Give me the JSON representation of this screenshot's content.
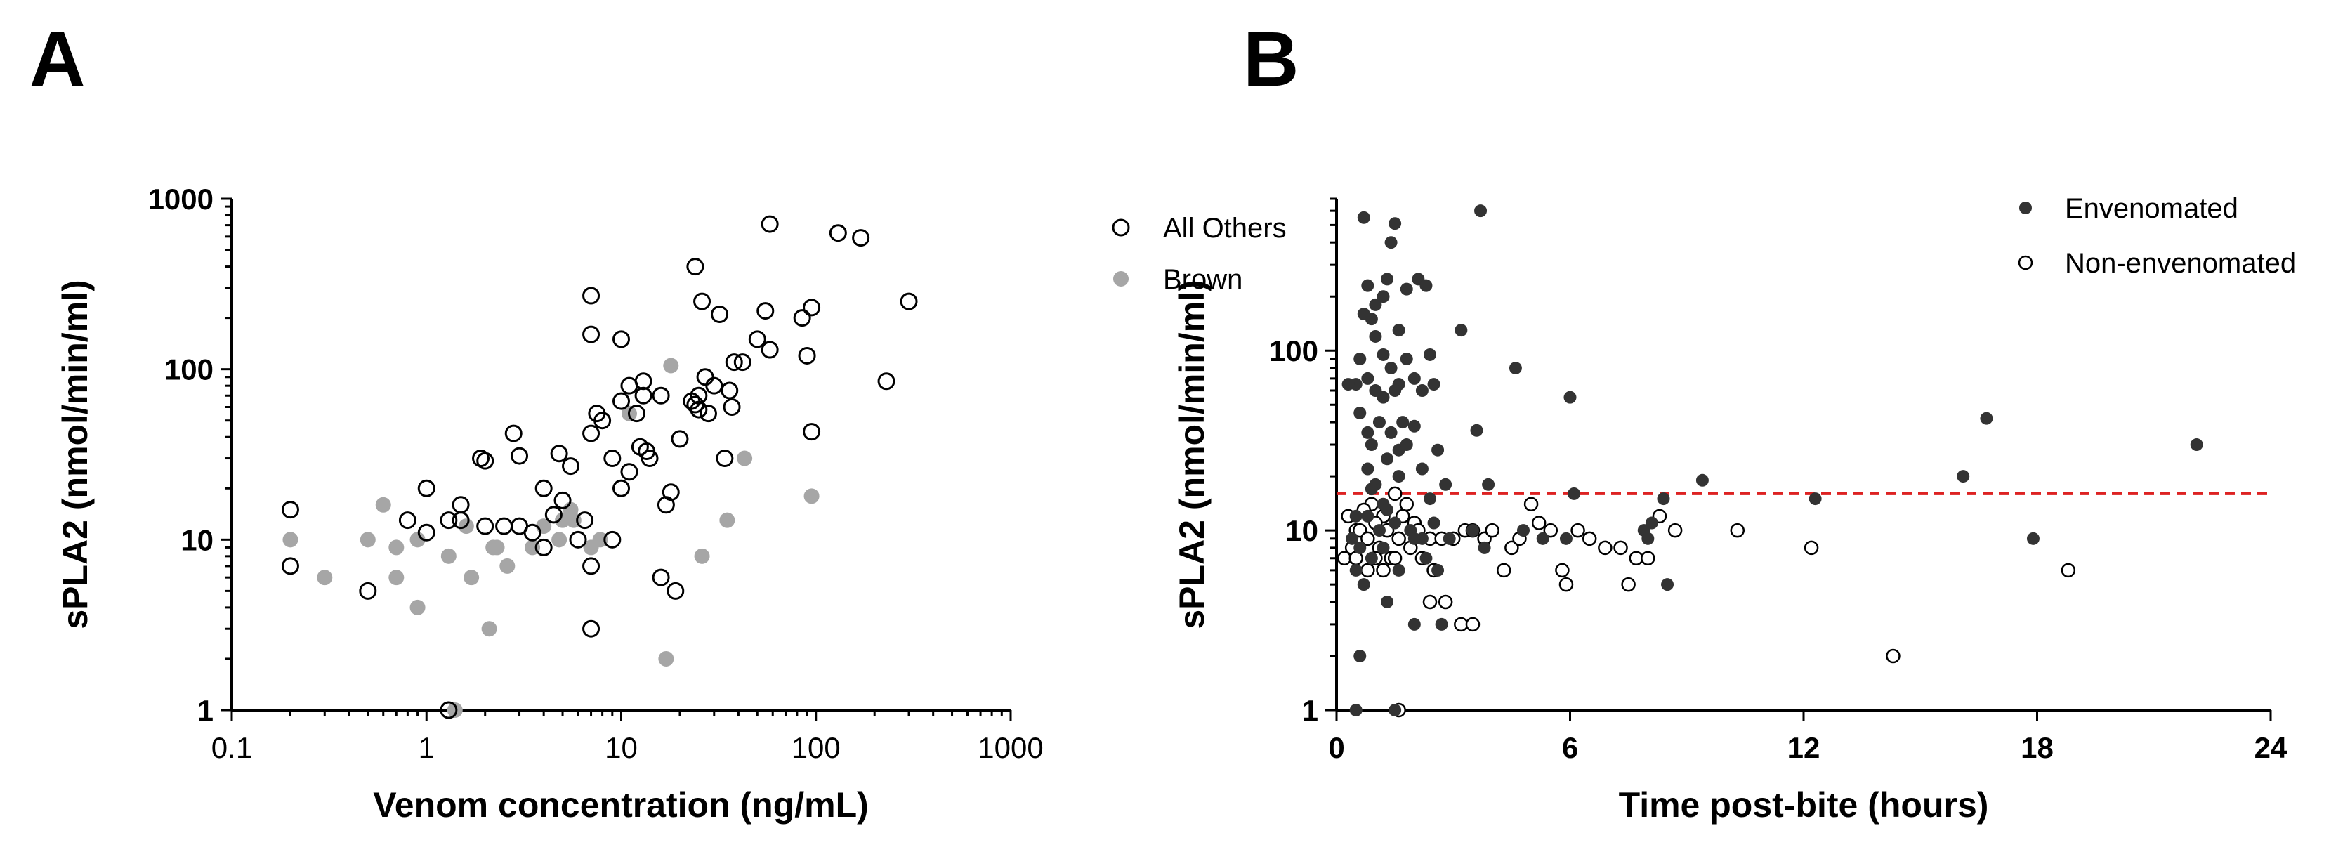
{
  "colors": {
    "black": "#000000",
    "dark_fill": "#333333",
    "gray_fill": "#a6a6a6",
    "threshold": "#dd2222"
  },
  "chart_data": [
    {
      "panel_label": "A",
      "type": "scatter",
      "xscale": "log",
      "yscale": "log",
      "xlabel": "Venom concentration (ng/mL)",
      "ylabel": "sPLA2 (nmol/min/ml)",
      "xlim": [
        0.1,
        1000
      ],
      "ylim": [
        1,
        1000
      ],
      "xticks": [
        "0.1",
        "1",
        "10",
        "100",
        "1000"
      ],
      "yticks": [
        "1",
        "10",
        "100",
        "1000"
      ],
      "legend_position": "right",
      "series": [
        {
          "name": "All Others",
          "marker": "open-circle",
          "points": [
            [
              0.2,
              15
            ],
            [
              0.2,
              7
            ],
            [
              0.5,
              5
            ],
            [
              0.8,
              13
            ],
            [
              1,
              20
            ],
            [
              1,
              11
            ],
            [
              1.3,
              13
            ],
            [
              1.5,
              16
            ],
            [
              1.5,
              13
            ],
            [
              1.9,
              30
            ],
            [
              2,
              29
            ],
            [
              2,
              12
            ],
            [
              2.5,
              12
            ],
            [
              2.8,
              42
            ],
            [
              3,
              12
            ],
            [
              3,
              31
            ],
            [
              3.5,
              11
            ],
            [
              4,
              20
            ],
            [
              4,
              9
            ],
            [
              4.5,
              14
            ],
            [
              4.8,
              32
            ],
            [
              5,
              17
            ],
            [
              5.5,
              27
            ],
            [
              6,
              10
            ],
            [
              6.5,
              13
            ],
            [
              7,
              270
            ],
            [
              7,
              160
            ],
            [
              7,
              42
            ],
            [
              7,
              7
            ],
            [
              7,
              3
            ],
            [
              7.5,
              55
            ],
            [
              8,
              50
            ],
            [
              9,
              30
            ],
            [
              9,
              10
            ],
            [
              10,
              150
            ],
            [
              10,
              65
            ],
            [
              10,
              20
            ],
            [
              11,
              80
            ],
            [
              11,
              25
            ],
            [
              12,
              55
            ],
            [
              12.5,
              35
            ],
            [
              13,
              85
            ],
            [
              13,
              70
            ],
            [
              13.5,
              33
            ],
            [
              14,
              30
            ],
            [
              16,
              70
            ],
            [
              16,
              6
            ],
            [
              17,
              16
            ],
            [
              18,
              19
            ],
            [
              19,
              5
            ],
            [
              20,
              39
            ],
            [
              23,
              65
            ],
            [
              24,
              62
            ],
            [
              24,
              400
            ],
            [
              25,
              70
            ],
            [
              25,
              58
            ],
            [
              26,
              250
            ],
            [
              27,
              90
            ],
            [
              28,
              55
            ],
            [
              30,
              80
            ],
            [
              32,
              210
            ],
            [
              34,
              30
            ],
            [
              36,
              75
            ],
            [
              37,
              60
            ],
            [
              38,
              110
            ],
            [
              42,
              110
            ],
            [
              50,
              150
            ],
            [
              55,
              220
            ],
            [
              58,
              130
            ],
            [
              58,
              710
            ],
            [
              85,
              200
            ],
            [
              90,
              120
            ],
            [
              95,
              230
            ],
            [
              95,
              43
            ],
            [
              130,
              630
            ],
            [
              170,
              590
            ],
            [
              230,
              85
            ],
            [
              300,
              250
            ],
            [
              1.3,
              1
            ]
          ]
        },
        {
          "name": "Brown",
          "marker": "filled-circle-gray",
          "points": [
            [
              0.2,
              10
            ],
            [
              0.3,
              6
            ],
            [
              0.5,
              10
            ],
            [
              0.6,
              16
            ],
            [
              0.7,
              9
            ],
            [
              0.7,
              6
            ],
            [
              0.9,
              10
            ],
            [
              0.9,
              4
            ],
            [
              1.3,
              8
            ],
            [
              1.4,
              1
            ],
            [
              1.6,
              12
            ],
            [
              1.7,
              6
            ],
            [
              2.1,
              3
            ],
            [
              2.2,
              9
            ],
            [
              2.3,
              9
            ],
            [
              2.6,
              7
            ],
            [
              3.5,
              9
            ],
            [
              4,
              12
            ],
            [
              4.8,
              10
            ],
            [
              5,
              13
            ],
            [
              5.5,
              15
            ],
            [
              5.7,
              13
            ],
            [
              7,
              9
            ],
            [
              7.8,
              10
            ],
            [
              11,
              55
            ],
            [
              17,
              2
            ],
            [
              18,
              105
            ],
            [
              26,
              8
            ],
            [
              35,
              13
            ],
            [
              43,
              30
            ],
            [
              95,
              18
            ]
          ]
        }
      ]
    },
    {
      "panel_label": "B",
      "type": "scatter",
      "xscale": "linear",
      "yscale": "log",
      "xlabel": "Time post-bite (hours)",
      "ylabel": "sPLA2 (nmol/min/ml)",
      "xlim": [
        0,
        24
      ],
      "ylim": [
        1,
        700
      ],
      "xticks": [
        "0",
        "6",
        "12",
        "18",
        "24"
      ],
      "yticks": [
        "1",
        "10",
        "100"
      ],
      "threshold": {
        "y": 16,
        "style": "dashed-red"
      },
      "legend_position": "top-right",
      "series": [
        {
          "name": "Envenomated",
          "marker": "filled-circle-dark",
          "points": [
            [
              0.7,
              550
            ],
            [
              1.2,
              200
            ],
            [
              1.3,
              250
            ],
            [
              1.4,
              400
            ],
            [
              1.5,
              510
            ],
            [
              1,
              180
            ],
            [
              0.9,
              150
            ],
            [
              0.8,
              230
            ],
            [
              0.7,
              160
            ],
            [
              1.6,
              130
            ],
            [
              1.8,
              220
            ],
            [
              2.1,
              250
            ],
            [
              2.3,
              230
            ],
            [
              3.2,
              130
            ],
            [
              3.7,
              600
            ],
            [
              0.6,
              90
            ],
            [
              0.8,
              70
            ],
            [
              1,
              120
            ],
            [
              1.2,
              95
            ],
            [
              1.4,
              80
            ],
            [
              1.6,
              65
            ],
            [
              1.8,
              90
            ],
            [
              2,
              70
            ],
            [
              2.4,
              95
            ],
            [
              2.5,
              65
            ],
            [
              0.5,
              65
            ],
            [
              0.3,
              65
            ],
            [
              1,
              60
            ],
            [
              1.2,
              55
            ],
            [
              1.5,
              60
            ],
            [
              1.7,
              40
            ],
            [
              2.2,
              60
            ],
            [
              0.6,
              45
            ],
            [
              0.8,
              35
            ],
            [
              0.9,
              30
            ],
            [
              1.1,
              40
            ],
            [
              1.3,
              25
            ],
            [
              1.4,
              35
            ],
            [
              1.6,
              28
            ],
            [
              1.8,
              30
            ],
            [
              2,
              38
            ],
            [
              2.2,
              22
            ],
            [
              2.6,
              28
            ],
            [
              0.8,
              22
            ],
            [
              1,
              18
            ],
            [
              0.9,
              17
            ],
            [
              1.2,
              14
            ],
            [
              1.6,
              20
            ],
            [
              2.4,
              15
            ],
            [
              2.8,
              18
            ],
            [
              3.6,
              36
            ],
            [
              4.6,
              80
            ],
            [
              6,
              55
            ],
            [
              3.9,
              18
            ],
            [
              6.1,
              16
            ],
            [
              8.1,
              11
            ],
            [
              8.4,
              15
            ],
            [
              9.4,
              19
            ],
            [
              12.3,
              15
            ],
            [
              16.1,
              20
            ],
            [
              16.7,
              42
            ],
            [
              22.1,
              30
            ],
            [
              17.9,
              9
            ],
            [
              0.5,
              12
            ],
            [
              0.8,
              12
            ],
            [
              1.1,
              10
            ],
            [
              1.3,
              13
            ],
            [
              1.5,
              11
            ],
            [
              1.9,
              10
            ],
            [
              2.2,
              9
            ],
            [
              2.5,
              11
            ],
            [
              2.9,
              9
            ],
            [
              0.4,
              9
            ],
            [
              0.6,
              8
            ],
            [
              0.9,
              7
            ],
            [
              1.2,
              8
            ],
            [
              1.6,
              6
            ],
            [
              2,
              9
            ],
            [
              2.3,
              7
            ],
            [
              2.6,
              6
            ],
            [
              3.5,
              10
            ],
            [
              4.8,
              10
            ],
            [
              5.3,
              9
            ],
            [
              3.8,
              8
            ],
            [
              5.9,
              9
            ],
            [
              0.5,
              6
            ],
            [
              0.7,
              5
            ],
            [
              1.3,
              4
            ],
            [
              2,
              3
            ],
            [
              2.7,
              3
            ],
            [
              0.6,
              2
            ],
            [
              0.5,
              1
            ],
            [
              1.5,
              1
            ],
            [
              7.9,
              10
            ],
            [
              8,
              9
            ],
            [
              8.5,
              5
            ]
          ]
        },
        {
          "name": "Non-envenomated",
          "marker": "open-circle-small",
          "points": [
            [
              0.9,
              14
            ],
            [
              1.2,
              12
            ],
            [
              1.5,
              16
            ],
            [
              1.8,
              14
            ],
            [
              0.3,
              12
            ],
            [
              0.5,
              10
            ],
            [
              0.7,
              13
            ],
            [
              1,
              11
            ],
            [
              1.3,
              10
            ],
            [
              1.7,
              12
            ],
            [
              2,
              11
            ],
            [
              0.4,
              8
            ],
            [
              0.6,
              10
            ],
            [
              0.8,
              9
            ],
            [
              1.1,
              8
            ],
            [
              1.4,
              7
            ],
            [
              1.6,
              9
            ],
            [
              2.1,
              10
            ],
            [
              2.4,
              9
            ],
            [
              2.7,
              9
            ],
            [
              3,
              9
            ],
            [
              3.3,
              10
            ],
            [
              3.5,
              10
            ],
            [
              3.8,
              9
            ],
            [
              0.2,
              7
            ],
            [
              0.5,
              7
            ],
            [
              0.8,
              6
            ],
            [
              1,
              7
            ],
            [
              1.2,
              6
            ],
            [
              1.5,
              7
            ],
            [
              1.9,
              8
            ],
            [
              2.2,
              7
            ],
            [
              2.5,
              6
            ],
            [
              4,
              10
            ],
            [
              4.3,
              6
            ],
            [
              4.5,
              8
            ],
            [
              4.7,
              9
            ],
            [
              5,
              14
            ],
            [
              5.2,
              11
            ],
            [
              5.5,
              10
            ],
            [
              5.8,
              6
            ],
            [
              5.9,
              5
            ],
            [
              6.2,
              10
            ],
            [
              6.5,
              9
            ],
            [
              6.9,
              8
            ],
            [
              7.3,
              8
            ],
            [
              7.5,
              5
            ],
            [
              7.7,
              7
            ],
            [
              8,
              7
            ],
            [
              8.3,
              12
            ],
            [
              8.7,
              10
            ],
            [
              10.3,
              10
            ],
            [
              12.2,
              8
            ],
            [
              14.3,
              2
            ],
            [
              18.8,
              6
            ],
            [
              2.4,
              4
            ],
            [
              2.8,
              4
            ],
            [
              3.2,
              3
            ],
            [
              3.5,
              3
            ],
            [
              1.6,
              1
            ]
          ]
        }
      ]
    }
  ]
}
